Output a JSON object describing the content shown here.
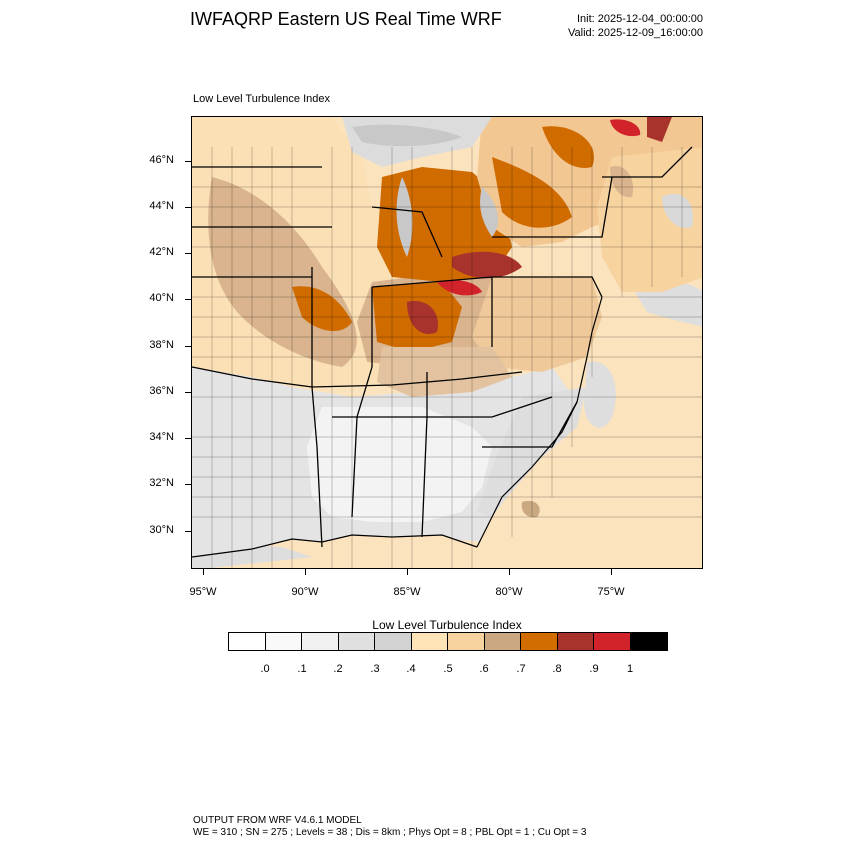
{
  "header": {
    "title": "IWFAQRP Eastern US Real Time WRF",
    "init": "Init: 2025-12-04_00:00:00",
    "valid": "Valid: 2025-12-09_16:00:00"
  },
  "map": {
    "panel_label": "Low Level Turbulence Index",
    "lat_labels": [
      "46°N",
      "44°N",
      "42°N",
      "40°N",
      "38°N",
      "36°N",
      "34°N",
      "32°N",
      "30°N"
    ],
    "lon_labels": [
      "95°W",
      "90°W",
      "85°W",
      "80°W",
      "75°W"
    ]
  },
  "colorbar": {
    "title": "Low Level Turbulence Index",
    "colors": [
      "#ffffff",
      "#f9f9f9",
      "#f1f1f1",
      "#e0e0e0",
      "#d2d2d2",
      "#fde3b6",
      "#f7d3a0",
      "#c9a882",
      "#d26d00",
      "#a8332c",
      "#d2232a",
      "#000000"
    ],
    "labels": [
      ".0",
      ".1",
      ".2",
      ".3",
      ".4",
      ".5",
      ".6",
      ".7",
      ".8",
      ".9",
      "1"
    ]
  },
  "footer": {
    "line1": "OUTPUT FROM WRF V4.6.1 MODEL",
    "line2": "WE = 310 ; SN = 275 ; Levels = 38 ; Dis = 8km ; Phys Opt = 8 ; PBL Opt = 1 ; Cu Opt = 3"
  }
}
